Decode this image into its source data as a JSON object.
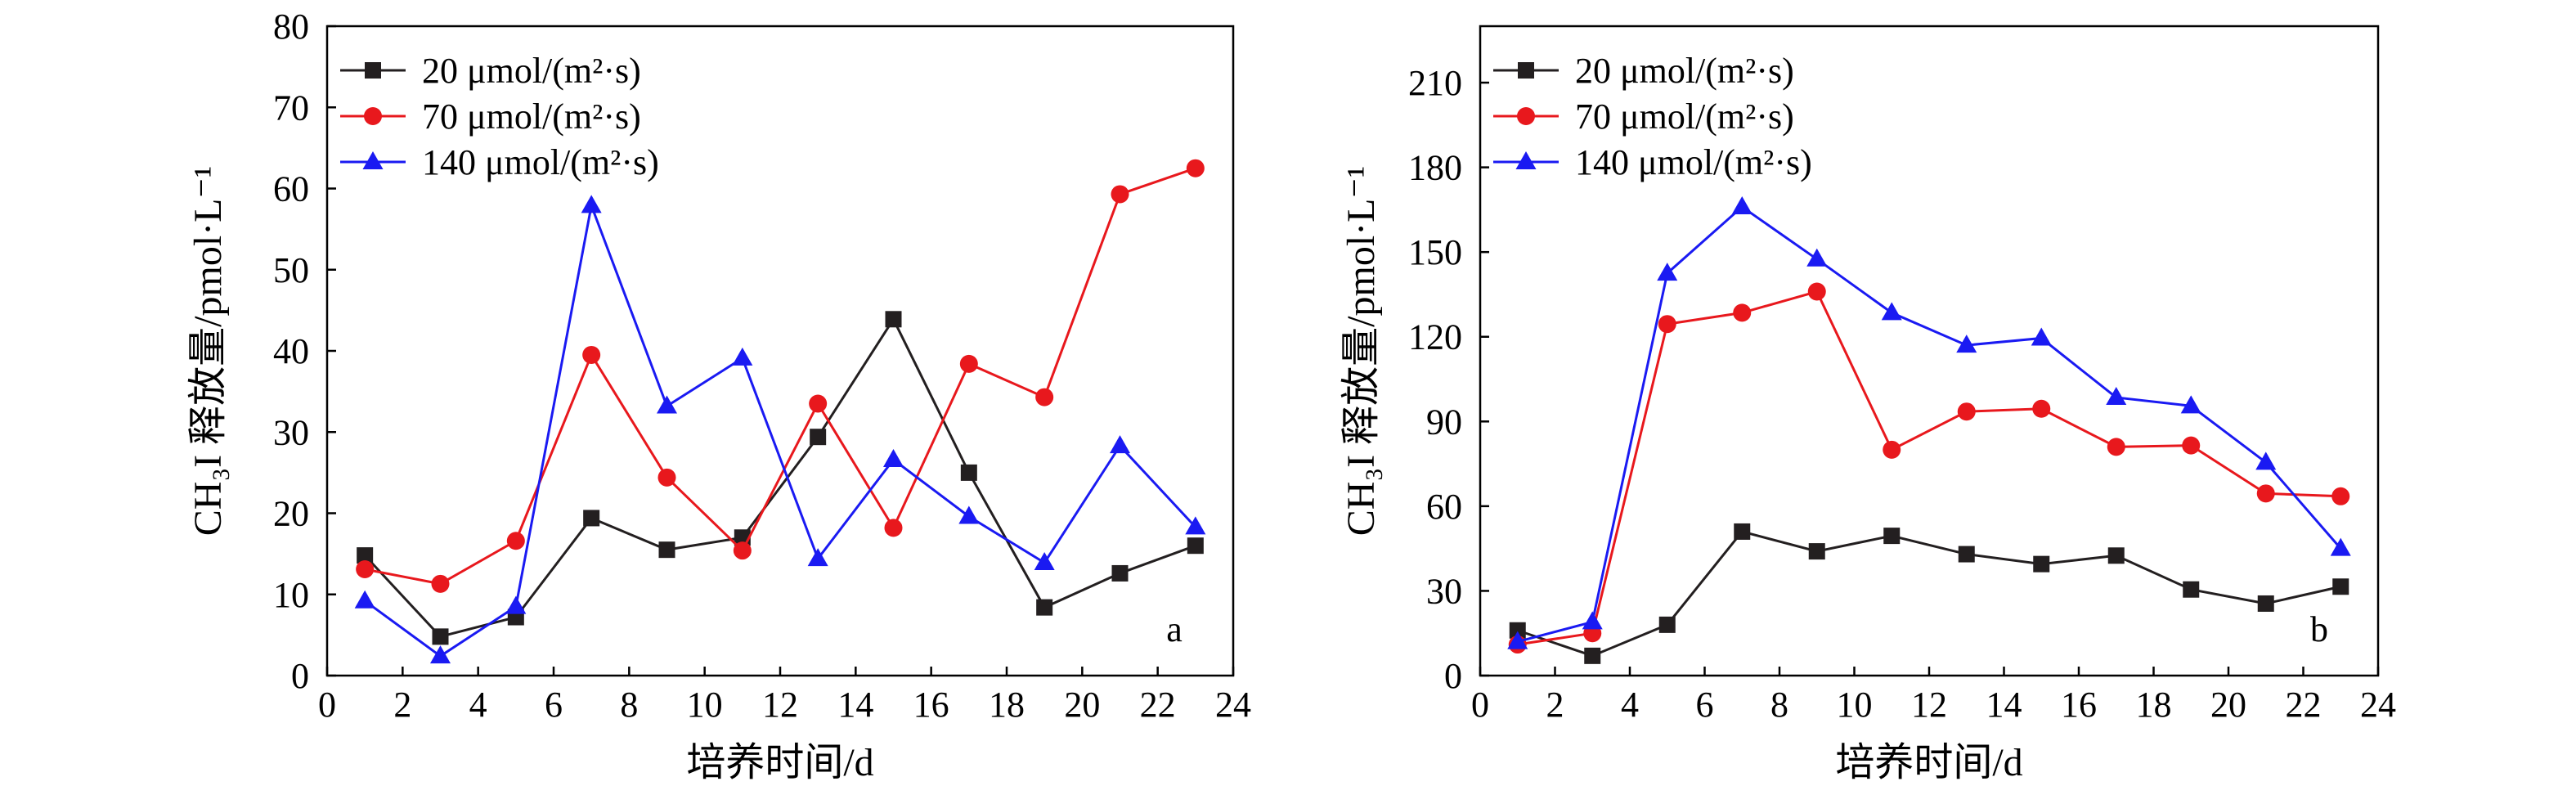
{
  "chart_data": [
    {
      "type": "line",
      "panel_label": "a",
      "xlabel": "培养时间/d",
      "ylabel": "CH₃I 释放量/pmol·L⁻¹",
      "xlim": [
        0,
        24
      ],
      "ylim": [
        0,
        80
      ],
      "xticks": [
        "0",
        "2",
        "4",
        "6",
        "8",
        "10",
        "12",
        "14",
        "16",
        "18",
        "20",
        "22",
        "24"
      ],
      "yticks": [
        "0",
        "10",
        "20",
        "30",
        "40",
        "50",
        "60",
        "70",
        "80"
      ],
      "legend_position": "top-left",
      "grid": false,
      "x": [
        1,
        3,
        5,
        7,
        9,
        11,
        13,
        15,
        17,
        19,
        21,
        23
      ],
      "series": [
        {
          "name": "20 μmol/(m²·s)",
          "color": "#231f20",
          "marker": "square",
          "values": [
            14.8,
            4.8,
            7.2,
            19.4,
            15.5,
            17.0,
            29.4,
            43.9,
            25.0,
            8.4,
            12.6,
            16.0
          ]
        },
        {
          "name": "70 μmol/(m²·s)",
          "color": "#e8181d",
          "marker": "circle",
          "values": [
            13.1,
            11.3,
            16.6,
            39.5,
            24.4,
            15.4,
            33.5,
            18.2,
            38.4,
            34.3,
            59.3,
            62.5
          ]
        },
        {
          "name": "140 μmol/(m²·s)",
          "color": "#1a1af2",
          "marker": "triangle",
          "values": [
            9.2,
            2.4,
            8.5,
            57.9,
            33.2,
            39.1,
            14.4,
            26.6,
            19.6,
            13.9,
            28.3,
            18.3
          ]
        }
      ]
    },
    {
      "type": "line",
      "panel_label": "b",
      "xlabel": "培养时间/d",
      "ylabel": "CH₃I 释放量/pmol·L⁻¹",
      "xlim": [
        0,
        24
      ],
      "ylim": [
        0,
        230
      ],
      "xticks": [
        "0",
        "2",
        "4",
        "6",
        "8",
        "10",
        "12",
        "14",
        "16",
        "18",
        "20",
        "22",
        "24"
      ],
      "yticks": [
        "0",
        "30",
        "60",
        "90",
        "120",
        "150",
        "180",
        "210"
      ],
      "legend_position": "top-left",
      "grid": false,
      "x": [
        1,
        3,
        5,
        7,
        9,
        11,
        13,
        15,
        17,
        19,
        21,
        23
      ],
      "series": [
        {
          "name": "20 μmol/(m²·s)",
          "color": "#231f20",
          "marker": "square",
          "values": [
            16,
            7,
            18,
            51,
            44,
            49.5,
            43,
            39.5,
            42.5,
            30.5,
            25.5,
            31.5
          ]
        },
        {
          "name": "70 μmol/(m²·s)",
          "color": "#e8181d",
          "marker": "circle",
          "values": [
            11,
            15,
            124.5,
            128.5,
            136,
            80,
            93.5,
            94.5,
            81,
            81.5,
            64.5,
            63.5
          ]
        },
        {
          "name": "140 μmol/(m²·s)",
          "color": "#1a1af2",
          "marker": "triangle",
          "values": [
            12,
            19,
            142.5,
            166,
            147.5,
            128.5,
            117,
            119.5,
            98.5,
            95.5,
            75.5,
            45
          ]
        }
      ]
    }
  ]
}
